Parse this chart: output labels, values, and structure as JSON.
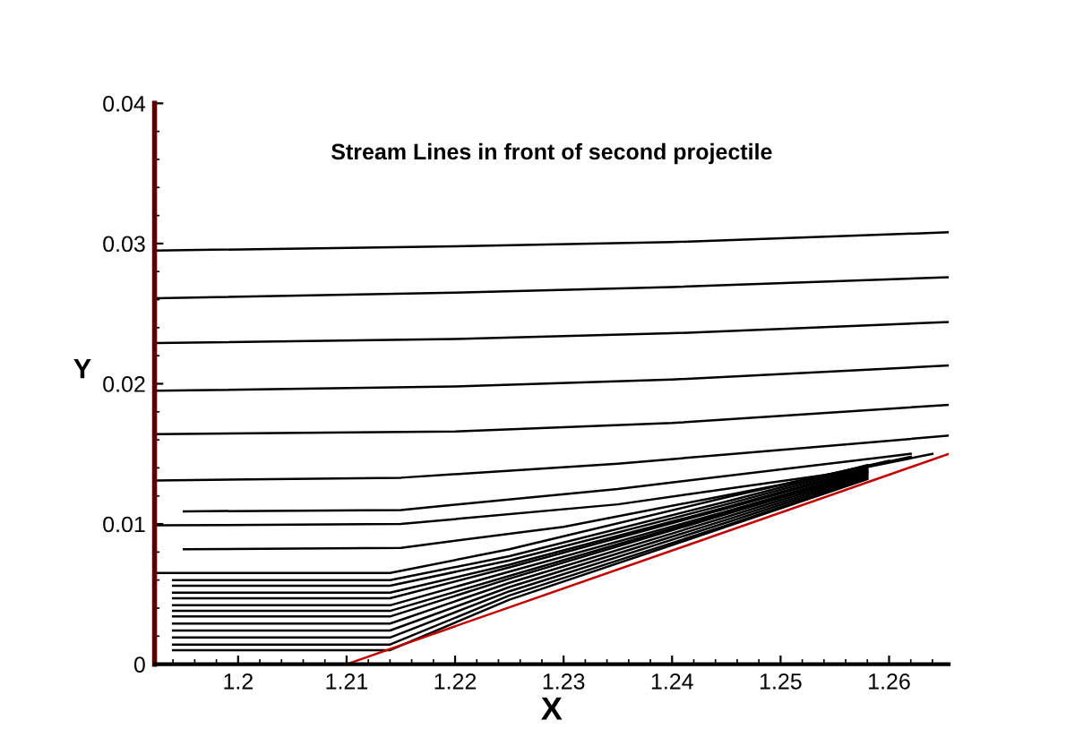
{
  "chart_data": {
    "type": "line",
    "title": "Stream Lines in front of second projectile",
    "xlabel": "X",
    "ylabel": "Y",
    "xlim": [
      1.1923,
      1.2655
    ],
    "ylim": [
      0,
      0.04
    ],
    "xticks": [
      1.2,
      1.21,
      1.22,
      1.23,
      1.24,
      1.25,
      1.26
    ],
    "yticks": [
      0,
      0.01,
      0.02,
      0.03,
      0.04
    ],
    "grid": false,
    "legend": false,
    "marker": "none",
    "line_style": "solid",
    "series": [
      {
        "color": "#000000",
        "x": [
          1.1925,
          1.22,
          1.24,
          1.2655
        ],
        "values": [
          0.0295,
          0.0298,
          0.0301,
          0.0308
        ]
      },
      {
        "color": "#000000",
        "x": [
          1.1925,
          1.22,
          1.24,
          1.2655
        ],
        "values": [
          0.0261,
          0.0265,
          0.0269,
          0.0276
        ]
      },
      {
        "color": "#000000",
        "x": [
          1.1925,
          1.22,
          1.24,
          1.2655
        ],
        "values": [
          0.0229,
          0.0232,
          0.0236,
          0.0244
        ]
      },
      {
        "color": "#000000",
        "x": [
          1.1925,
          1.22,
          1.24,
          1.2655
        ],
        "values": [
          0.0195,
          0.0198,
          0.0203,
          0.0213
        ]
      },
      {
        "color": "#000000",
        "x": [
          1.1925,
          1.22,
          1.24,
          1.2655
        ],
        "values": [
          0.0164,
          0.0166,
          0.0172,
          0.0185
        ]
      },
      {
        "color": "#000000",
        "x": [
          1.1925,
          1.215,
          1.235,
          1.2655
        ],
        "values": [
          0.0131,
          0.0133,
          0.0143,
          0.0163
        ]
      },
      {
        "color": "#000000",
        "x": [
          1.195,
          1.215,
          1.235,
          1.262
        ],
        "values": [
          0.0109,
          0.011,
          0.0125,
          0.015
        ]
      },
      {
        "color": "#000000",
        "x": [
          1.1925,
          1.215,
          1.235,
          1.255,
          1.264
        ],
        "values": [
          0.0099,
          0.01,
          0.0114,
          0.0136,
          0.015
        ]
      },
      {
        "color": "#000000",
        "x": [
          1.195,
          1.215,
          1.23,
          1.25,
          1.262
        ],
        "values": [
          0.0082,
          0.0083,
          0.0098,
          0.0128,
          0.0148
        ]
      },
      {
        "color": "#000000",
        "x": [
          1.1925,
          1.214,
          1.225,
          1.245,
          1.26
        ],
        "values": [
          0.0065,
          0.0065,
          0.0082,
          0.0119,
          0.0145
        ]
      },
      {
        "color": "#000000",
        "x": [
          1.194,
          1.214,
          1.225,
          1.245,
          1.258
        ],
        "values": [
          0.006,
          0.006,
          0.0077,
          0.0116,
          0.0142
        ]
      },
      {
        "color": "#000000",
        "x": [
          1.194,
          1.214,
          1.225,
          1.245,
          1.258
        ],
        "values": [
          0.0056,
          0.0056,
          0.0074,
          0.0114,
          0.0141
        ]
      },
      {
        "color": "#000000",
        "x": [
          1.194,
          1.214,
          1.225,
          1.245,
          1.258
        ],
        "values": [
          0.0051,
          0.0051,
          0.0071,
          0.0112,
          0.014
        ]
      },
      {
        "color": "#000000",
        "x": [
          1.194,
          1.214,
          1.225,
          1.245,
          1.258
        ],
        "values": [
          0.0047,
          0.0047,
          0.0069,
          0.0111,
          0.0139
        ]
      },
      {
        "color": "#000000",
        "x": [
          1.194,
          1.214,
          1.225,
          1.245,
          1.258
        ],
        "values": [
          0.0042,
          0.0042,
          0.0066,
          0.0109,
          0.0138
        ]
      },
      {
        "color": "#000000",
        "x": [
          1.194,
          1.214,
          1.225,
          1.245,
          1.258
        ],
        "values": [
          0.0038,
          0.0038,
          0.0063,
          0.0108,
          0.0137
        ]
      },
      {
        "color": "#000000",
        "x": [
          1.194,
          1.214,
          1.225,
          1.245,
          1.258
        ],
        "values": [
          0.0034,
          0.0034,
          0.0061,
          0.0107,
          0.0137
        ]
      },
      {
        "color": "#000000",
        "x": [
          1.194,
          1.214,
          1.225,
          1.245,
          1.258
        ],
        "values": [
          0.0029,
          0.0029,
          0.0058,
          0.0105,
          0.0136
        ]
      },
      {
        "color": "#000000",
        "x": [
          1.194,
          1.214,
          1.225,
          1.245,
          1.258
        ],
        "values": [
          0.0024,
          0.0024,
          0.0055,
          0.0103,
          0.0135
        ]
      },
      {
        "color": "#000000",
        "x": [
          1.194,
          1.214,
          1.225,
          1.245,
          1.258
        ],
        "values": [
          0.0019,
          0.0019,
          0.0052,
          0.0101,
          0.0134
        ]
      },
      {
        "color": "#000000",
        "x": [
          1.194,
          1.214,
          1.225,
          1.245,
          1.258
        ],
        "values": [
          0.0014,
          0.0014,
          0.0049,
          0.0099,
          0.0133
        ]
      },
      {
        "color": "#000000",
        "x": [
          1.194,
          1.214,
          1.225,
          1.245,
          1.258
        ],
        "values": [
          0.001,
          0.001,
          0.0046,
          0.0098,
          0.0132
        ]
      },
      {
        "color": "#c00000",
        "x": [
          1.1923,
          1.21,
          1.2655
        ],
        "values": [
          0,
          0,
          0.015
        ]
      }
    ]
  }
}
